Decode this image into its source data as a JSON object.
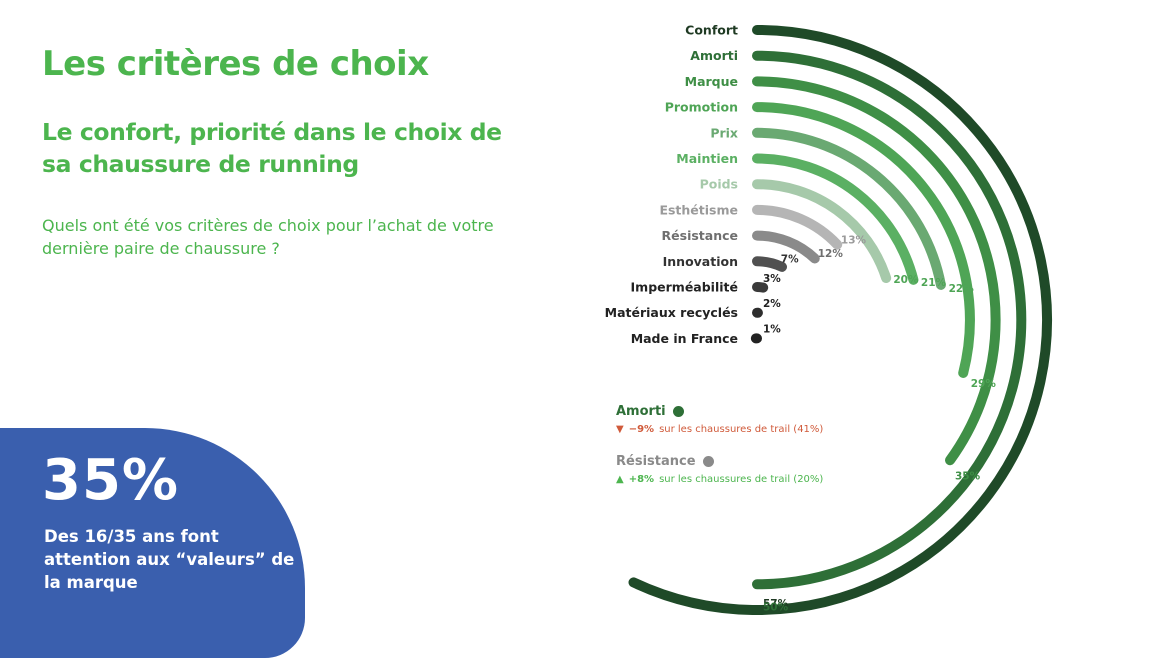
{
  "title": "Les critères de choix",
  "subtitle": "Le confort, priorité dans le choix de sa chaussure de running",
  "question": "Quels ont été vos critères de choix pour l’achat de votre dernière paire de chaussure ?",
  "highlight": {
    "value": "35%",
    "text": "Des 16/35 ans font attention aux “valeurs” de la marque"
  },
  "legend": [
    {
      "name": "Amorti",
      "color": "#2e6f37",
      "arrow": "▼",
      "arrow_color": "#d05a3a",
      "change": "−9%",
      "change_color": "#d05a3a",
      "detail": "sur les chaussures de trail (41%)"
    },
    {
      "name": "Résistance",
      "color": "#8a8a8a",
      "arrow": "▲",
      "arrow_color": "#4cb54e",
      "change": "+8%",
      "change_color": "#4cb54e",
      "detail": "sur les chaussures de trail (20%)"
    }
  ],
  "chart_data": {
    "type": "radial-bar",
    "unit": "%",
    "categories": [
      "Confort",
      "Amorti",
      "Marque",
      "Promotion",
      "Prix",
      "Maintien",
      "Poids",
      "Esthétisme",
      "Résistance",
      "Innovation",
      "Imperméabilité",
      "Matériaux recyclés",
      "Made in France"
    ],
    "values": [
      57,
      50,
      35,
      29,
      22,
      21,
      20,
      13,
      12,
      7,
      3,
      2,
      1
    ],
    "colors": [
      "#1f4a28",
      "#2e6f37",
      "#3f8f46",
      "#4fa556",
      "#6aa972",
      "#5bb063",
      "#a6c9aa",
      "#b5b5b5",
      "#8a8a8a",
      "#505050",
      "#3a3a3a",
      "#2e2e2e",
      "#222222"
    ],
    "label_colors": [
      "#1f3a23",
      "#2e6f37",
      "#3f8f46",
      "#4fa556",
      "#6aa972",
      "#5bb063",
      "#a6c9aa",
      "#9a9a9a",
      "#6f6f6f",
      "#333333",
      "#222222",
      "#222222",
      "#222222"
    ],
    "value_label_colors": [
      "#1f3a23",
      "#2e6f37",
      "#3f8f46",
      "#4fa556",
      "#4fa556",
      "#4fa556",
      "#4fa556",
      "#9a9a9a",
      "#6f6f6f",
      "#333333",
      "#222222",
      "#222222",
      "#222222"
    ],
    "max": 100
  }
}
